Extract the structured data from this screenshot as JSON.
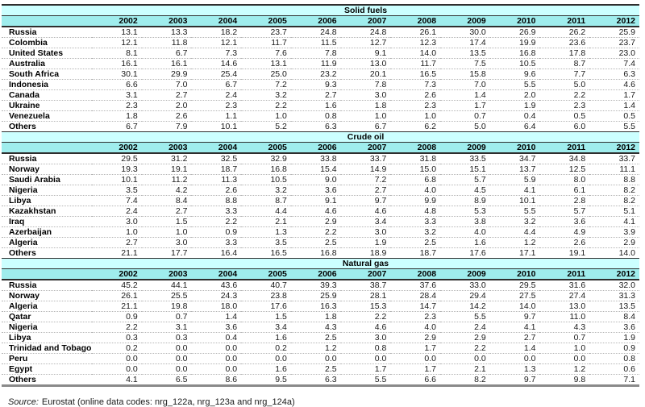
{
  "chart_data": {
    "type": "table",
    "years": [
      "2002",
      "2003",
      "2004",
      "2005",
      "2006",
      "2007",
      "2008",
      "2009",
      "2010",
      "2011",
      "2012"
    ],
    "sections": [
      {
        "title": "Solid fuels",
        "rows": [
          {
            "label": "Russia",
            "values": [
              "13.1",
              "13.3",
              "18.2",
              "23.7",
              "24.8",
              "24.8",
              "26.1",
              "30.0",
              "26.9",
              "26.2",
              "25.9"
            ]
          },
          {
            "label": "Colombia",
            "values": [
              "12.1",
              "11.8",
              "12.1",
              "11.7",
              "11.5",
              "12.7",
              "12.3",
              "17.4",
              "19.9",
              "23.6",
              "23.7"
            ]
          },
          {
            "label": "United States",
            "values": [
              "8.1",
              "6.7",
              "7.3",
              "7.6",
              "7.8",
              "9.1",
              "14.0",
              "13.5",
              "16.8",
              "17.8",
              "23.0"
            ]
          },
          {
            "label": "Australia",
            "values": [
              "16.1",
              "16.1",
              "14.6",
              "13.1",
              "11.9",
              "13.0",
              "11.7",
              "7.5",
              "10.5",
              "8.7",
              "7.4"
            ]
          },
          {
            "label": "South Africa",
            "values": [
              "30.1",
              "29.9",
              "25.4",
              "25.0",
              "23.2",
              "20.1",
              "16.5",
              "15.8",
              "9.6",
              "7.7",
              "6.3"
            ]
          },
          {
            "label": "Indonesia",
            "values": [
              "6.6",
              "7.0",
              "6.7",
              "7.2",
              "9.3",
              "7.8",
              "7.3",
              "7.0",
              "5.5",
              "5.0",
              "4.6"
            ]
          },
          {
            "label": "Canada",
            "values": [
              "3.1",
              "2.7",
              "2.4",
              "3.2",
              "2.7",
              "3.0",
              "2.6",
              "1.4",
              "2.0",
              "2.2",
              "1.7"
            ]
          },
          {
            "label": "Ukraine",
            "values": [
              "2.3",
              "2.0",
              "2.3",
              "2.2",
              "1.6",
              "1.8",
              "2.3",
              "1.7",
              "1.9",
              "2.3",
              "1.4"
            ]
          },
          {
            "label": "Venezuela",
            "values": [
              "1.8",
              "2.6",
              "1.1",
              "1.0",
              "0.8",
              "1.0",
              "1.0",
              "0.7",
              "0.4",
              "0.5",
              "0.5"
            ]
          },
          {
            "label": "Others",
            "values": [
              "6.7",
              "7.9",
              "10.1",
              "5.2",
              "6.3",
              "6.7",
              "6.2",
              "5.0",
              "6.4",
              "6.0",
              "5.5"
            ]
          }
        ]
      },
      {
        "title": "Crude oil",
        "rows": [
          {
            "label": "Russia",
            "values": [
              "29.5",
              "31.2",
              "32.5",
              "32.9",
              "33.8",
              "33.7",
              "31.8",
              "33.5",
              "34.7",
              "34.8",
              "33.7"
            ]
          },
          {
            "label": "Norway",
            "values": [
              "19.3",
              "19.1",
              "18.7",
              "16.8",
              "15.4",
              "14.9",
              "15.0",
              "15.1",
              "13.7",
              "12.5",
              "11.1"
            ]
          },
          {
            "label": "Saudi Arabia",
            "values": [
              "10.1",
              "11.2",
              "11.3",
              "10.5",
              "9.0",
              "7.2",
              "6.8",
              "5.7",
              "5.9",
              "8.0",
              "8.8"
            ]
          },
          {
            "label": "Nigeria",
            "values": [
              "3.5",
              "4.2",
              "2.6",
              "3.2",
              "3.6",
              "2.7",
              "4.0",
              "4.5",
              "4.1",
              "6.1",
              "8.2"
            ]
          },
          {
            "label": "Libya",
            "values": [
              "7.4",
              "8.4",
              "8.8",
              "8.7",
              "9.1",
              "9.7",
              "9.9",
              "8.9",
              "10.1",
              "2.8",
              "8.2"
            ]
          },
          {
            "label": "Kazakhstan",
            "values": [
              "2.4",
              "2.7",
              "3.3",
              "4.4",
              "4.6",
              "4.6",
              "4.8",
              "5.3",
              "5.5",
              "5.7",
              "5.1"
            ]
          },
          {
            "label": "Iraq",
            "values": [
              "3.0",
              "1.5",
              "2.2",
              "2.1",
              "2.9",
              "3.4",
              "3.3",
              "3.8",
              "3.2",
              "3.6",
              "4.1"
            ]
          },
          {
            "label": "Azerbaijan",
            "values": [
              "1.0",
              "1.0",
              "0.9",
              "1.3",
              "2.2",
              "3.0",
              "3.2",
              "4.0",
              "4.4",
              "4.9",
              "3.9"
            ]
          },
          {
            "label": "Algeria",
            "values": [
              "2.7",
              "3.0",
              "3.3",
              "3.5",
              "2.5",
              "1.9",
              "2.5",
              "1.6",
              "1.2",
              "2.6",
              "2.9"
            ]
          },
          {
            "label": "Others",
            "values": [
              "21.1",
              "17.7",
              "16.4",
              "16.5",
              "16.8",
              "18.9",
              "18.7",
              "17.6",
              "17.1",
              "19.1",
              "14.0"
            ]
          }
        ]
      },
      {
        "title": "Natural gas",
        "rows": [
          {
            "label": "Russia",
            "values": [
              "45.2",
              "44.1",
              "43.6",
              "40.7",
              "39.3",
              "38.7",
              "37.6",
              "33.0",
              "29.5",
              "31.6",
              "32.0"
            ]
          },
          {
            "label": "Norway",
            "values": [
              "26.1",
              "25.5",
              "24.3",
              "23.8",
              "25.9",
              "28.1",
              "28.4",
              "29.4",
              "27.5",
              "27.4",
              "31.3"
            ]
          },
          {
            "label": "Algeria",
            "values": [
              "21.1",
              "19.8",
              "18.0",
              "17.6",
              "16.3",
              "15.3",
              "14.7",
              "14.2",
              "14.0",
              "13.0",
              "13.5"
            ]
          },
          {
            "label": "Qatar",
            "values": [
              "0.9",
              "0.7",
              "1.4",
              "1.5",
              "1.8",
              "2.2",
              "2.3",
              "5.5",
              "9.7",
              "11.0",
              "8.4"
            ]
          },
          {
            "label": "Nigeria",
            "values": [
              "2.2",
              "3.1",
              "3.6",
              "3.4",
              "4.3",
              "4.6",
              "4.0",
              "2.4",
              "4.1",
              "4.3",
              "3.6"
            ]
          },
          {
            "label": "Libya",
            "values": [
              "0.3",
              "0.3",
              "0.4",
              "1.6",
              "2.5",
              "3.0",
              "2.9",
              "2.9",
              "2.7",
              "0.7",
              "1.9"
            ]
          },
          {
            "label": "Trinidad and Tobago",
            "values": [
              "0.2",
              "0.0",
              "0.0",
              "0.2",
              "1.2",
              "0.8",
              "1.7",
              "2.2",
              "1.4",
              "1.0",
              "0.9"
            ]
          },
          {
            "label": "Peru",
            "values": [
              "0.0",
              "0.0",
              "0.0",
              "0.0",
              "0.0",
              "0.0",
              "0.0",
              "0.0",
              "0.0",
              "0.0",
              "0.8"
            ]
          },
          {
            "label": "Egypt",
            "values": [
              "0.0",
              "0.0",
              "0.0",
              "1.6",
              "2.5",
              "1.7",
              "1.7",
              "2.1",
              "1.3",
              "1.2",
              "0.6"
            ]
          },
          {
            "label": "Others",
            "values": [
              "4.1",
              "6.5",
              "8.6",
              "9.5",
              "6.3",
              "5.5",
              "6.6",
              "8.2",
              "9.7",
              "9.8",
              "7.1"
            ]
          }
        ]
      }
    ]
  },
  "source_note": {
    "label": "Source:",
    "text": "Eurostat (online data codes: nrg_122a, nrg_123a and nrg_124a)"
  },
  "colors": {
    "section_band": "#ccffff",
    "year_band": "#9feded",
    "table_border": "#2e2e2e",
    "row_divider": "#b5b5b5",
    "bottom_border": "#8a8a8a",
    "text_color": "#1a1a1a"
  }
}
